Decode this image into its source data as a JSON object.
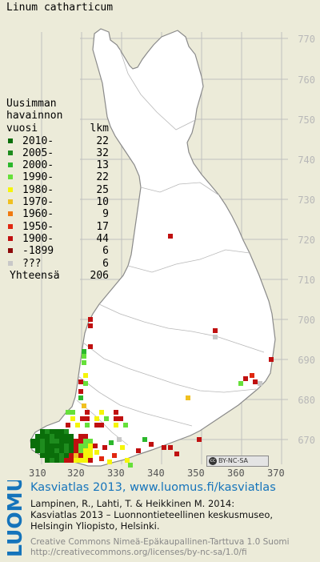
{
  "species": "Linum catharticum",
  "legend": {
    "header": [
      "Uusimman",
      "havainnon",
      "vuosi",
      "lkm"
    ],
    "rows": [
      {
        "label": "2010-",
        "count": "22",
        "color": "#0a6e0a"
      },
      {
        "label": "2005-",
        "count": "32",
        "color": "#1e8c1e"
      },
      {
        "label": "2000-",
        "count": "13",
        "color": "#2cb82c"
      },
      {
        "label": "1990-",
        "count": "22",
        "color": "#66e03a"
      },
      {
        "label": "1980-",
        "count": "25",
        "color": "#f5f50a"
      },
      {
        "label": "1970-",
        "count": "10",
        "color": "#f0c020"
      },
      {
        "label": "1960-",
        "count": "9",
        "color": "#f07a10"
      },
      {
        "label": "1950-",
        "count": "17",
        "color": "#e02810"
      },
      {
        "label": "1900-",
        "count": "44",
        "color": "#c01010"
      },
      {
        "label": "-1899",
        "count": "6",
        "color": "#8c0a0a"
      },
      {
        "label": "???",
        "count": "6",
        "color": "#c8c8c8"
      }
    ],
    "total_label": "Yhteensä",
    "total_count": "206"
  },
  "grid": {
    "y_labels": [
      "770",
      "760",
      "750",
      "740",
      "730",
      "720",
      "710",
      "700",
      "690",
      "680",
      "670"
    ],
    "x_labels": [
      "310",
      "320",
      "330",
      "340",
      "350",
      "360",
      "370"
    ]
  },
  "license_badge": "BY-NC-SA",
  "credits": {
    "title": "Kasviatlas 2013, www.luomus.fi/kasviatlas",
    "ref_lines": [
      "Lampinen, R., Lahti, T. & Heikkinen M. 2014:",
      "Kasviatlas 2013 – Luonnontieteellinen keskusmuseo,",
      "Helsingin Yliopisto, Helsinki."
    ],
    "license_lines": [
      "Creative Commons Nimeä-Epäkaupallinen-Tarttuva 1.0 Suomi",
      "http://creativecommons.org/licenses/by-nc-sa/1.0/fi"
    ]
  },
  "logo_text": "LUOMUS",
  "colors": {
    "map_fill": "#ffffff",
    "background": "#ecebd9",
    "accent": "#1574bb"
  }
}
